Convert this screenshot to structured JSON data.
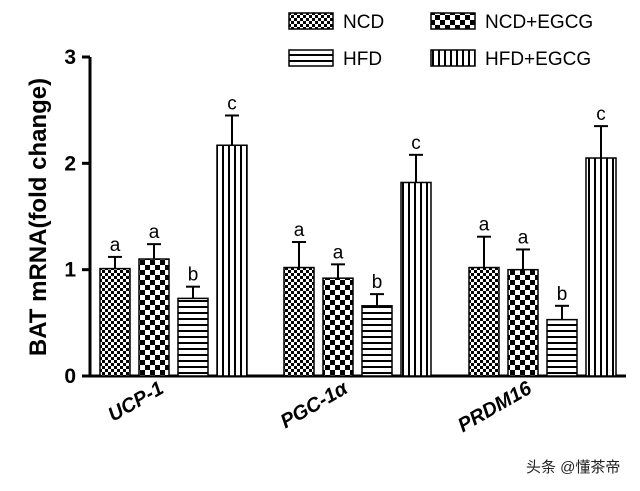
{
  "chart_data": {
    "type": "bar",
    "ylabel": "BAT mRNA(fold change)",
    "xlabel": "",
    "ylim": [
      0,
      3
    ],
    "yticks": [
      "0",
      "1",
      "2",
      "3"
    ],
    "categories": [
      "UCP-1",
      "PGC-1α",
      "PRDM16"
    ],
    "legend_position": "top-right",
    "series": [
      {
        "name": "NCD",
        "pattern": "checker-small",
        "values": [
          1.01,
          1.02,
          1.02
        ],
        "errors": [
          0.11,
          0.24,
          0.29
        ],
        "letters": [
          "a",
          "a",
          "a"
        ]
      },
      {
        "name": "NCD+EGCG",
        "pattern": "checker-large",
        "values": [
          1.1,
          0.92,
          1.0
        ],
        "errors": [
          0.14,
          0.13,
          0.19
        ],
        "letters": [
          "a",
          "a",
          "a"
        ]
      },
      {
        "name": "HFD",
        "pattern": "horizontal-stripes",
        "values": [
          0.73,
          0.66,
          0.53
        ],
        "errors": [
          0.11,
          0.11,
          0.13
        ],
        "letters": [
          "b",
          "b",
          "b"
        ]
      },
      {
        "name": "HFD+EGCG",
        "pattern": "vertical-stripes",
        "values": [
          2.17,
          1.82,
          2.05
        ],
        "errors": [
          0.28,
          0.26,
          0.3
        ],
        "letters": [
          "c",
          "c",
          "c"
        ]
      }
    ]
  },
  "watermark": "头条 @懂茶帝"
}
